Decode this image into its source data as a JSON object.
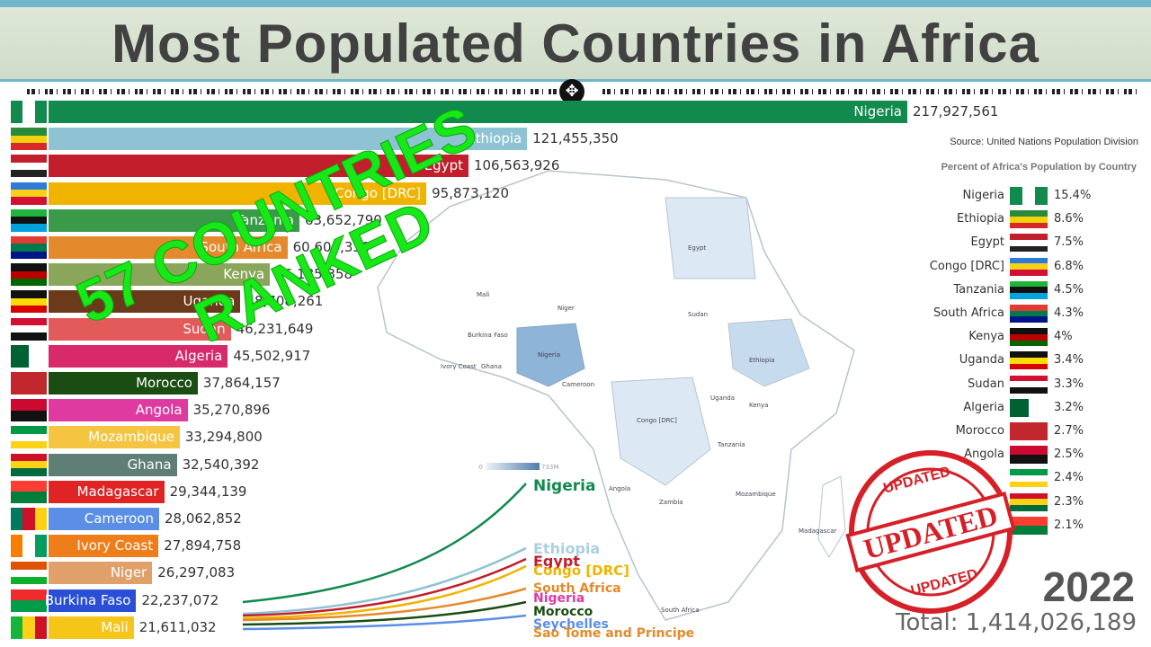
{
  "title": "Most Populated Countries in Africa",
  "source": "Source: United Nations Population Division",
  "pct_title": "Percent of Africa's Population by Country",
  "year": "2022",
  "total": "Total: 1,414,026,189",
  "overlay_line1": "57 COUNTRIES",
  "overlay_line2": "RANKED",
  "stamp_top": "UPDATED",
  "stamp_middle": "UPDATED",
  "stamp_bottom": "UPDATED",
  "legend_min": "0",
  "legend_max": "733M",
  "map_labels": [
    "Egypt",
    "Mali",
    "Niger",
    "Sudan",
    "Nigeria",
    "Burkina Faso",
    "Ivory Coast",
    "Ghana",
    "Cameroon",
    "Ethiopia",
    "Uganda",
    "Kenya",
    "Congo [DRC]",
    "Tanzania",
    "Angola",
    "Zambia",
    "Mozambique",
    "Madagascar",
    "South Africa"
  ],
  "line_labels": [
    "Nigeria",
    "Ethiopia",
    "Egypt",
    "Congo [DRC]",
    "South Africa",
    "Nigeria",
    "Morocco",
    "Seychelles",
    "Sao Tome and Principe"
  ],
  "icons": {
    "scrub_handle": "move-arrows-icon"
  },
  "colors": {
    "title_band": "#cfdcc9",
    "accent": "#6fb7c9",
    "overlay": "#17e817",
    "stamp": "#d61f26"
  },
  "chart_data": {
    "type": "bar",
    "title": "Most Populated Countries in Africa",
    "year": "2022",
    "xlim": [
      0,
      217927561
    ],
    "bars": [
      {
        "name": "Nigeria",
        "value": 217927561,
        "color": "#128a4d",
        "label_color": "#ffffff",
        "flag": [
          "#128a4d",
          "#ffffff",
          "#128a4d"
        ],
        "flag_dir": "v"
      },
      {
        "name": "Ethiopia",
        "value": 121455350,
        "color": "#8ec3d3",
        "label_color": "#ffffff",
        "flag": [
          "#2a8a3c",
          "#f4d20b",
          "#d8282a"
        ],
        "flag_dir": "h"
      },
      {
        "name": "Egypt",
        "value": 106563926,
        "color": "#c21e2b",
        "label_color": "#ffffff",
        "flag": [
          "#c21e2b",
          "#ffffff",
          "#222222"
        ],
        "flag_dir": "h"
      },
      {
        "name": "Congo [DRC]",
        "value": 95873120,
        "color": "#f0b400",
        "label_color": "#ffffff",
        "flag": [
          "#2f7bd9",
          "#f7d117",
          "#d21034"
        ],
        "flag_dir": "d"
      },
      {
        "name": "Tanzania",
        "value": 63652790,
        "color": "#3a9a4a",
        "label_color": "#ffffff",
        "flag": [
          "#1eb53a",
          "#111111",
          "#00a3dd"
        ],
        "flag_dir": "d"
      },
      {
        "name": "South Africa",
        "value": 60604330,
        "color": "#e48a2c",
        "label_color": "#ffffff",
        "flag": [
          "#e03c31",
          "#007a4d",
          "#001489"
        ],
        "flag_dir": "h"
      },
      {
        "name": "Kenya",
        "value": 56185358,
        "color": "#8aa65a",
        "label_color": "#ffffff",
        "flag": [
          "#111111",
          "#bb0000",
          "#006600"
        ],
        "flag_dir": "h"
      },
      {
        "name": "Uganda",
        "value": 48708261,
        "color": "#6a3a1a",
        "label_color": "#ffffff",
        "flag": [
          "#111111",
          "#fcdc04",
          "#d90000"
        ],
        "flag_dir": "h"
      },
      {
        "name": "Sudan",
        "value": 46231649,
        "color": "#e35a5a",
        "label_color": "#ffffff",
        "flag": [
          "#d21034",
          "#ffffff",
          "#111111"
        ],
        "flag_dir": "h"
      },
      {
        "name": "Algeria",
        "value": 45502917,
        "color": "#d8296a",
        "label_color": "#ffffff",
        "flag": [
          "#006233",
          "#ffffff"
        ],
        "flag_dir": "v"
      },
      {
        "name": "Morocco",
        "value": 37864157,
        "color": "#1a4d12",
        "label_color": "#ffffff",
        "flag": [
          "#c1272d",
          "#c1272d"
        ],
        "flag_dir": "h"
      },
      {
        "name": "Angola",
        "value": 35270896,
        "color": "#de3aa0",
        "label_color": "#ffffff",
        "flag": [
          "#cc092f",
          "#111111"
        ],
        "flag_dir": "h"
      },
      {
        "name": "Mozambique",
        "value": 33294800,
        "color": "#f5c542",
        "label_color": "#ffffff",
        "flag": [
          "#009a44",
          "#ffffff",
          "#fcd116"
        ],
        "flag_dir": "h"
      },
      {
        "name": "Ghana",
        "value": 32540392,
        "color": "#5f7f76",
        "label_color": "#ffffff",
        "flag": [
          "#ce1126",
          "#fcd116",
          "#006b3f"
        ],
        "flag_dir": "h"
      },
      {
        "name": "Madagascar",
        "value": 29344139,
        "color": "#e02424",
        "label_color": "#ffffff",
        "flag": [
          "#fc3d32",
          "#007e3a"
        ],
        "flag_dir": "h"
      },
      {
        "name": "Cameroon",
        "value": 28062852,
        "color": "#5b8ee6",
        "label_color": "#ffffff",
        "flag": [
          "#007a5e",
          "#ce1126",
          "#fcd116"
        ],
        "flag_dir": "v"
      },
      {
        "name": "Ivory Coast",
        "value": 27894758,
        "color": "#ef7d1a",
        "label_color": "#ffffff",
        "flag": [
          "#f77f00",
          "#ffffff",
          "#009e60"
        ],
        "flag_dir": "v"
      },
      {
        "name": "Niger",
        "value": 26297083,
        "color": "#e0a06a",
        "label_color": "#ffffff",
        "flag": [
          "#e05206",
          "#ffffff",
          "#0db02b"
        ],
        "flag_dir": "h"
      },
      {
        "name": "Burkina Faso",
        "value": 22237072,
        "color": "#2a4fd6",
        "label_color": "#ffffff",
        "flag": [
          "#ef2b2d",
          "#009e49"
        ],
        "flag_dir": "h"
      },
      {
        "name": "Mali",
        "value": 21611032,
        "color": "#f5c518",
        "label_color": "#ffffff",
        "flag": [
          "#14b53a",
          "#fcd116",
          "#ce1126"
        ],
        "flag_dir": "v"
      }
    ],
    "percentages": [
      {
        "name": "Nigeria",
        "pct": "15.4%"
      },
      {
        "name": "Ethiopia",
        "pct": "8.6%"
      },
      {
        "name": "Egypt",
        "pct": "7.5%"
      },
      {
        "name": "Congo [DRC]",
        "pct": "6.8%"
      },
      {
        "name": "Tanzania",
        "pct": "4.5%"
      },
      {
        "name": "South Africa",
        "pct": "4.3%"
      },
      {
        "name": "Kenya",
        "pct": "4%"
      },
      {
        "name": "Uganda",
        "pct": "3.4%"
      },
      {
        "name": "Sudan",
        "pct": "3.3%"
      },
      {
        "name": "Algeria",
        "pct": "3.2%"
      },
      {
        "name": "Morocco",
        "pct": "2.7%"
      },
      {
        "name": "Angola",
        "pct": "2.5%"
      },
      {
        "name": "",
        "pct": "2.4%"
      },
      {
        "name": "",
        "pct": "2.3%"
      },
      {
        "name": "",
        "pct": "2.1%"
      }
    ],
    "line_series": [
      {
        "name": "Nigeria",
        "color": "#128a4d"
      },
      {
        "name": "Ethiopia",
        "color": "#8ec3d3"
      },
      {
        "name": "Egypt",
        "color": "#c21e2b"
      },
      {
        "name": "Congo [DRC]",
        "color": "#f0b400"
      },
      {
        "name": "South Africa",
        "color": "#e48a2c"
      },
      {
        "name": "Morocco",
        "color": "#1a4d12"
      }
    ]
  }
}
